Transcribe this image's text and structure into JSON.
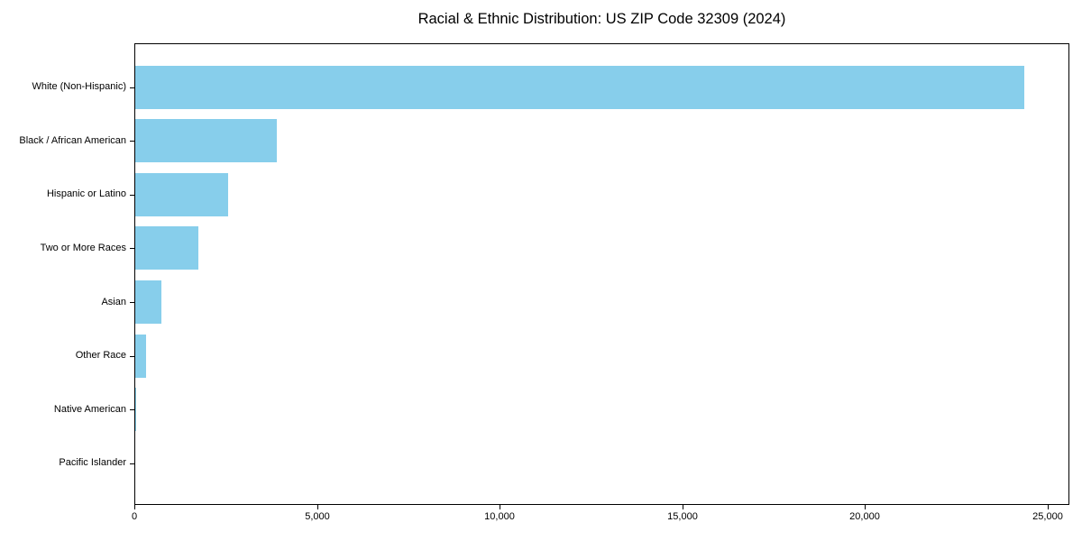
{
  "chart_data": {
    "type": "bar",
    "orientation": "horizontal",
    "title": "Racial & Ethnic Distribution: US ZIP Code 32309 (2024)",
    "categories": [
      "White (Non-Hispanic)",
      "Black / African American",
      "Hispanic or Latino",
      "Two or More Races",
      "Asian",
      "Other Race",
      "Native American",
      "Pacific Islander"
    ],
    "values": [
      24350,
      3870,
      2540,
      1730,
      715,
      300,
      20,
      10
    ],
    "xlabel": "",
    "ylabel": "",
    "xlim": [
      0,
      25600
    ],
    "x_ticks": [
      0,
      5000,
      10000,
      15000,
      20000,
      25000
    ],
    "x_tick_labels": [
      "0",
      "5,000",
      "10,000",
      "15,000",
      "20,000",
      "25,000"
    ],
    "bar_color": "#87CEEB",
    "axis_color": "#000000",
    "background_color": "#FFFFFF",
    "grid": false,
    "legend": "none"
  }
}
